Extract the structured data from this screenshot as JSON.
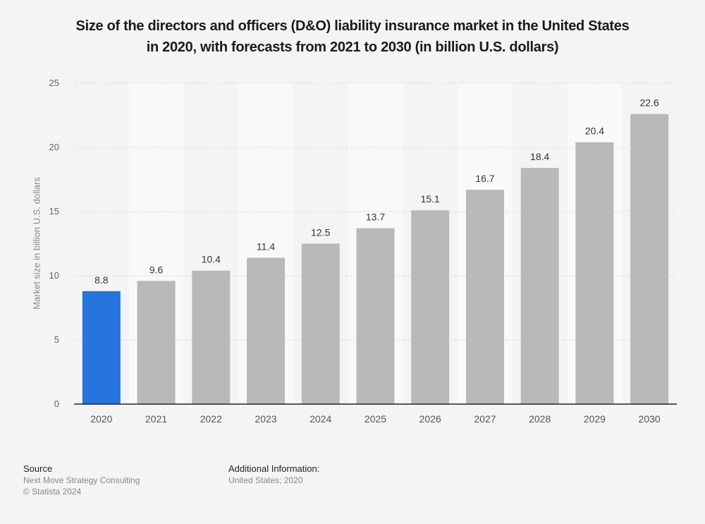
{
  "chart_data": {
    "type": "bar",
    "title": "Size of the directors and officers (D&O) liability insurance market in the United States in 2020, with forecasts from 2021 to 2030 (in billion U.S. dollars)",
    "title_lines": [
      "Size of the directors and officers (D&O) liability insurance market in the United States",
      "in 2020, with forecasts from 2021 to 2030 (in billion U.S. dollars)"
    ],
    "xlabel": "",
    "ylabel": "Market size in billion U.S. dollars",
    "categories": [
      "2020",
      "2021",
      "2022",
      "2023",
      "2024",
      "2025",
      "2026",
      "2027",
      "2028",
      "2029",
      "2030"
    ],
    "values": [
      8.8,
      9.6,
      10.4,
      11.4,
      12.5,
      13.7,
      15.1,
      16.7,
      18.4,
      20.4,
      22.6
    ],
    "data_labels": [
      "8.8",
      "9.6",
      "10.4",
      "11.4",
      "12.5",
      "13.7",
      "15.1",
      "16.7",
      "18.4",
      "20.4",
      "22.6"
    ],
    "ylim": [
      0,
      25
    ],
    "yticks": [
      0,
      5,
      10,
      15,
      20,
      25
    ],
    "grid": true,
    "highlight_index": 0,
    "colors": {
      "highlight": "#2674dd",
      "bar": "#b9b9b9",
      "band_light": "#f9f9f9",
      "band_dark": "#f4f4f4"
    }
  },
  "footer": {
    "source_heading": "Source",
    "source_lines": [
      "Next Move Strategy Consulting",
      "© Statista 2024"
    ],
    "additional_heading": "Additional Information:",
    "additional_lines": [
      "United States; 2020"
    ]
  }
}
